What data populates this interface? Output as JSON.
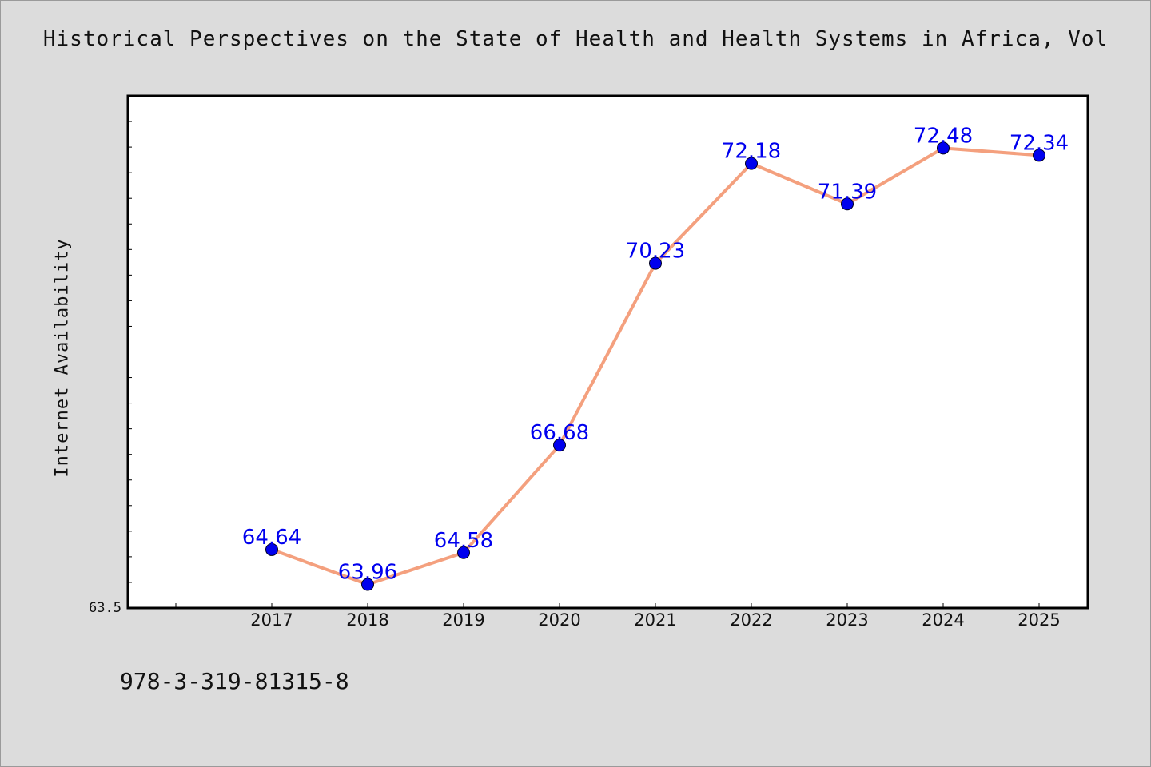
{
  "chart_data": {
    "type": "line",
    "title": "Historical Perspectives on the State of Health and Health Systems in Africa, Vol",
    "xlabel": "",
    "ylabel": "Internet Availability",
    "categories": [
      "2017",
      "2018",
      "2019",
      "2020",
      "2021",
      "2022",
      "2023",
      "2024",
      "2025"
    ],
    "series": [
      {
        "values": [
          64.64,
          63.96,
          64.58,
          66.68,
          70.23,
          72.18,
          71.39,
          72.48,
          72.34
        ]
      }
    ],
    "data_labels": [
      "64.64",
      "63.96",
      "64.58",
      "66.68",
      "70.23",
      "72.18",
      "71.39",
      "72.48",
      "72.34"
    ],
    "ylim": [
      63.5,
      73.5
    ],
    "y_tick_labels": [
      "63.5"
    ],
    "grid": false,
    "line_color": "#f4a07e",
    "marker_color": "#0000ee",
    "label_color": "#0000ee"
  },
  "footer": {
    "isbn": "978-3-319-81315-8"
  }
}
